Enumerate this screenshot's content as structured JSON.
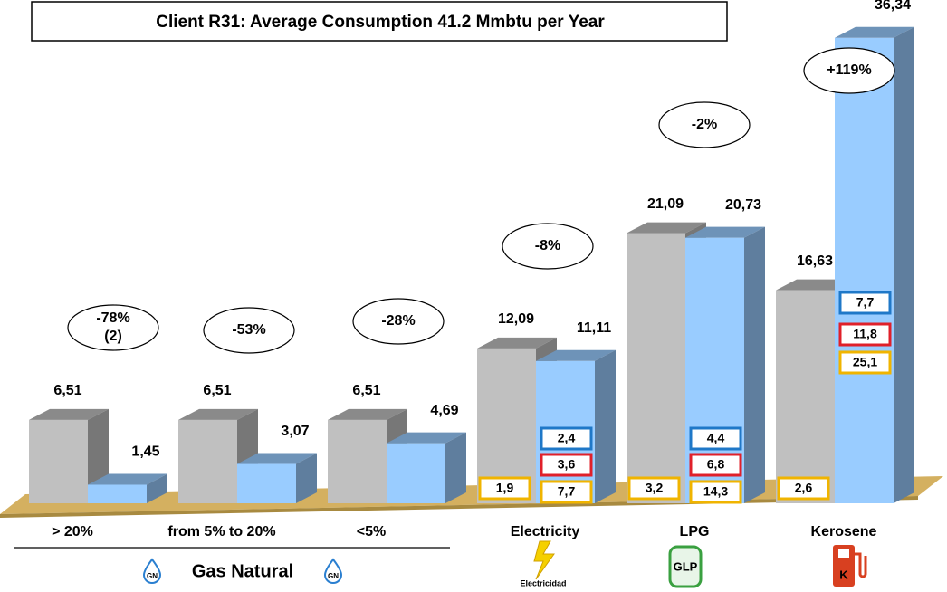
{
  "chart_data": {
    "type": "bar3d",
    "title": "Client R31: Average Consumption 41.2 Mmbtu  per Year",
    "categories": [
      "> 20%",
      "from 5% to 20%",
      "<5%",
      "Electricity",
      "LPG",
      "Kerosene"
    ],
    "series": [
      {
        "color": "#c0c0c0",
        "values": [
          6.51,
          6.51,
          6.51,
          12.09,
          21.09,
          16.63
        ],
        "value_labels": [
          "6,51",
          "6,51",
          "6,51",
          "12,09",
          "21,09",
          "16,63"
        ]
      },
      {
        "color": "#99ccff",
        "values": [
          1.45,
          3.07,
          4.69,
          11.11,
          20.73,
          36.34
        ],
        "value_labels": [
          "1,45",
          "3,07",
          "4,69",
          "11,11",
          "20,73",
          "36,34"
        ]
      }
    ],
    "annotations": [
      [
        "-78%",
        "(2)"
      ],
      [
        "-53%"
      ],
      [
        "-28%"
      ],
      [
        "-8%"
      ],
      [
        "-2%"
      ],
      [
        "+119%"
      ]
    ],
    "gray_boxes": [
      null,
      null,
      null,
      {
        "value": 1.9,
        "label": "1,9",
        "color": "#f0b400"
      },
      {
        "value": 3.2,
        "label": "3,2",
        "color": "#f0b400"
      },
      {
        "value": 2.6,
        "label": "2,6",
        "color": "#f0b400"
      }
    ],
    "blue_boxes": [
      null,
      null,
      null,
      [
        {
          "value": 2.4,
          "label": "2,4",
          "color": "#1f78c8"
        },
        {
          "value": 3.6,
          "label": "3,6",
          "color": "#e0202a"
        },
        {
          "value": 7.7,
          "label": "7,7",
          "color": "#f0b400"
        }
      ],
      [
        {
          "value": 4.4,
          "label": "4,4",
          "color": "#1f78c8"
        },
        {
          "value": 6.8,
          "label": "6,8",
          "color": "#e0202a"
        },
        {
          "value": 14.3,
          "label": "14,3",
          "color": "#f0b400"
        }
      ],
      [
        {
          "value": 7.7,
          "label": "7,7",
          "color": "#1f78c8"
        },
        {
          "value": 11.8,
          "label": "11,8",
          "color": "#e0202a"
        },
        {
          "value": 25.1,
          "label": "25,1",
          "color": "#f0b400"
        }
      ]
    ],
    "group_label": "Gas Natural",
    "icon_labels": {
      "gas": "GN",
      "electricity": "Electricidad",
      "lpg": "GLP",
      "kerosene": "K"
    }
  }
}
